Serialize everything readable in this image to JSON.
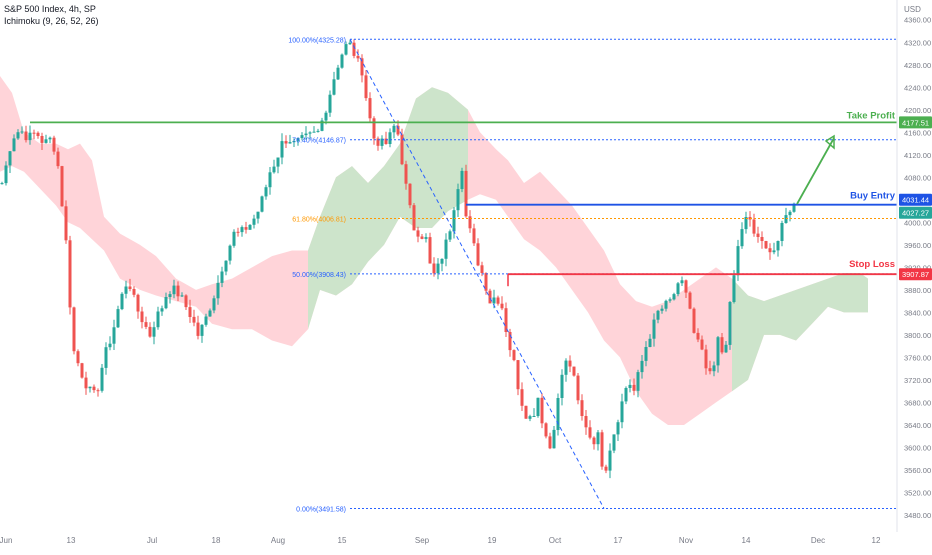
{
  "header": {
    "symbol_line": "S&P 500 Index, 4h, SP",
    "indicator_line": "Ichimoku (9, 26, 52, 26)"
  },
  "colors": {
    "bull": "#26a69a",
    "bear": "#ef5350",
    "cloud_bull": "#c8e6c9",
    "cloud_bear": "#ffcdd2",
    "take_profit": "#4caf50",
    "buy_entry": "#1e53e5",
    "stop_loss": "#f23645",
    "fib": "#2962ff",
    "fib_618": "#ff9800",
    "grid_text": "#787b86",
    "price_mark": "#26a69a"
  },
  "chart_data": {
    "type": "candlestick",
    "currency": "USD",
    "y_ticks": [
      4360.0,
      4320.0,
      4280.0,
      4240.0,
      4200.0,
      4160.0,
      4120.0,
      4080.0,
      4040.0,
      4000.0,
      3960.0,
      3920.0,
      3880.0,
      3840.0,
      3800.0,
      3760.0,
      3720.0,
      3680.0,
      3640.0,
      3600.0,
      3560.0,
      3520.0,
      3480.0
    ],
    "y_range": [
      3468,
      4378
    ],
    "x_ticks": [
      "Jun",
      "13",
      "Jul",
      "18",
      "Aug",
      "15",
      "Sep",
      "19",
      "Oct",
      "17",
      "Nov",
      "14",
      "Dec",
      "12"
    ],
    "levels": {
      "take_profit": {
        "label": "Take Profit",
        "price": 4177.51,
        "price_label": "4177.51"
      },
      "buy_entry": {
        "label": "Buy Entry",
        "price": 4031.44,
        "price_label": "4031.44"
      },
      "stop_loss": {
        "label": "Stop Loss",
        "price": 3907.87,
        "price_label": "3907.87"
      },
      "current": {
        "price": 4027.27,
        "price_label": "4027.27"
      }
    },
    "fibonacci": [
      {
        "label": "100.00%(4325.28)",
        "price": 4325.28
      },
      {
        "label": "76.40%(4146.87)",
        "price": 4146.87
      },
      {
        "label": "61.80%(4006.81)",
        "price": 4006.81
      },
      {
        "label": "50.00%(3908.43)",
        "price": 3908.43
      },
      {
        "label": "0.00%(3491.58)",
        "price": 3491.58
      }
    ],
    "candle_anchors": [
      [
        2,
        4070
      ],
      [
        6,
        4100
      ],
      [
        12,
        4150
      ],
      [
        20,
        4165
      ],
      [
        28,
        4150
      ],
      [
        36,
        4160
      ],
      [
        44,
        4140
      ],
      [
        52,
        4150
      ],
      [
        58,
        4100
      ],
      [
        64,
        4000
      ],
      [
        68,
        3930
      ],
      [
        72,
        3780
      ],
      [
        78,
        3750
      ],
      [
        84,
        3720
      ],
      [
        90,
        3700
      ],
      [
        96,
        3690
      ],
      [
        104,
        3760
      ],
      [
        112,
        3800
      ],
      [
        120,
        3860
      ],
      [
        128,
        3900
      ],
      [
        136,
        3850
      ],
      [
        144,
        3820
      ],
      [
        150,
        3800
      ],
      [
        156,
        3830
      ],
      [
        162,
        3850
      ],
      [
        168,
        3880
      ],
      [
        174,
        3880
      ],
      [
        180,
        3870
      ],
      [
        186,
        3850
      ],
      [
        192,
        3830
      ],
      [
        198,
        3800
      ],
      [
        204,
        3820
      ],
      [
        210,
        3850
      ],
      [
        216,
        3880
      ],
      [
        222,
        3920
      ],
      [
        228,
        3950
      ],
      [
        234,
        3980
      ],
      [
        240,
        3980
      ],
      [
        246,
        3990
      ],
      [
        252,
        4000
      ],
      [
        258,
        4020
      ],
      [
        264,
        4050
      ],
      [
        270,
        4090
      ],
      [
        276,
        4110
      ],
      [
        282,
        4140
      ],
      [
        288,
        4150
      ],
      [
        294,
        4140
      ],
      [
        300,
        4145
      ],
      [
        306,
        4150
      ],
      [
        312,
        4155
      ],
      [
        318,
        4160
      ],
      [
        324,
        4190
      ],
      [
        330,
        4230
      ],
      [
        336,
        4270
      ],
      [
        342,
        4300
      ],
      [
        348,
        4320
      ],
      [
        352,
        4310
      ],
      [
        356,
        4290
      ],
      [
        362,
        4270
      ],
      [
        368,
        4200
      ],
      [
        374,
        4150
      ],
      [
        380,
        4140
      ],
      [
        386,
        4140
      ],
      [
        392,
        4160
      ],
      [
        396,
        4180
      ],
      [
        402,
        4110
      ],
      [
        408,
        4040
      ],
      [
        414,
        3990
      ],
      [
        420,
        3980
      ],
      [
        426,
        3970
      ],
      [
        432,
        3900
      ],
      [
        438,
        3920
      ],
      [
        444,
        3950
      ],
      [
        450,
        3990
      ],
      [
        456,
        4050
      ],
      [
        462,
        4100
      ],
      [
        466,
        4010
      ],
      [
        472,
        3970
      ],
      [
        478,
        3930
      ],
      [
        484,
        3900
      ],
      [
        490,
        3860
      ],
      [
        496,
        3870
      ],
      [
        502,
        3850
      ],
      [
        508,
        3790
      ],
      [
        514,
        3750
      ],
      [
        520,
        3690
      ],
      [
        526,
        3660
      ],
      [
        532,
        3650
      ],
      [
        538,
        3690
      ],
      [
        544,
        3630
      ],
      [
        550,
        3600
      ],
      [
        556,
        3660
      ],
      [
        562,
        3730
      ],
      [
        568,
        3760
      ],
      [
        574,
        3720
      ],
      [
        580,
        3660
      ],
      [
        586,
        3640
      ],
      [
        592,
        3610
      ],
      [
        598,
        3620
      ],
      [
        604,
        3550
      ],
      [
        610,
        3600
      ],
      [
        616,
        3640
      ],
      [
        622,
        3680
      ],
      [
        628,
        3720
      ],
      [
        634,
        3700
      ],
      [
        640,
        3740
      ],
      [
        646,
        3780
      ],
      [
        652,
        3810
      ],
      [
        658,
        3840
      ],
      [
        664,
        3850
      ],
      [
        670,
        3860
      ],
      [
        676,
        3880
      ],
      [
        682,
        3890
      ],
      [
        688,
        3870
      ],
      [
        694,
        3800
      ],
      [
        700,
        3780
      ],
      [
        706,
        3740
      ],
      [
        712,
        3720
      ],
      [
        718,
        3790
      ],
      [
        724,
        3760
      ],
      [
        728,
        3820
      ],
      [
        732,
        3880
      ],
      [
        736,
        3930
      ],
      [
        740,
        3980
      ],
      [
        744,
        4000
      ],
      [
        748,
        4010
      ],
      [
        752,
        3990
      ],
      [
        756,
        3970
      ],
      [
        760,
        3980
      ],
      [
        764,
        3940
      ],
      [
        768,
        3960
      ],
      [
        772,
        3950
      ],
      [
        776,
        3955
      ],
      [
        780,
        3980
      ],
      [
        784,
        4000
      ],
      [
        788,
        4020
      ],
      [
        792,
        4030
      ]
    ],
    "cloud": {
      "upper": [
        [
          0,
          4260
        ],
        [
          12,
          4230
        ],
        [
          24,
          4160
        ],
        [
          40,
          4140
        ],
        [
          56,
          4140
        ],
        [
          68,
          4130
        ],
        [
          80,
          4140
        ],
        [
          92,
          4110
        ],
        [
          104,
          4010
        ],
        [
          120,
          3980
        ],
        [
          140,
          3960
        ],
        [
          156,
          3940
        ],
        [
          176,
          3900
        ],
        [
          196,
          3880
        ],
        [
          212,
          3890
        ],
        [
          232,
          3900
        ],
        [
          252,
          3920
        ],
        [
          272,
          3940
        ],
        [
          292,
          3950
        ],
        [
          308,
          3950
        ],
        [
          320,
          4010
        ],
        [
          336,
          4080
        ],
        [
          352,
          4100
        ],
        [
          368,
          4070
        ],
        [
          384,
          4100
        ],
        [
          400,
          4140
        ],
        [
          416,
          4220
        ],
        [
          432,
          4240
        ],
        [
          448,
          4230
        ],
        [
          468,
          4200
        ],
        [
          480,
          4160
        ],
        [
          496,
          4130
        ],
        [
          508,
          4110
        ],
        [
          524,
          4070
        ],
        [
          540,
          4090
        ],
        [
          556,
          4060
        ],
        [
          572,
          4030
        ],
        [
          588,
          3990
        ],
        [
          604,
          3950
        ],
        [
          620,
          3890
        ],
        [
          636,
          3860
        ],
        [
          652,
          3850
        ],
        [
          668,
          3860
        ],
        [
          684,
          3880
        ],
        [
          700,
          3900
        ],
        [
          716,
          3920
        ],
        [
          732,
          3900
        ],
        [
          748,
          3870
        ],
        [
          764,
          3860
        ],
        [
          780,
          3870
        ],
        [
          796,
          3880
        ],
        [
          812,
          3890
        ],
        [
          828,
          3900
        ],
        [
          844,
          3910
        ],
        [
          860,
          3910
        ],
        [
          868,
          3900
        ]
      ],
      "lower": [
        [
          0,
          4090
        ],
        [
          12,
          4100
        ],
        [
          24,
          4090
        ],
        [
          40,
          4060
        ],
        [
          56,
          4030
        ],
        [
          68,
          4000
        ],
        [
          80,
          3990
        ],
        [
          92,
          3970
        ],
        [
          104,
          3950
        ],
        [
          120,
          3900
        ],
        [
          140,
          3880
        ],
        [
          156,
          3870
        ],
        [
          176,
          3860
        ],
        [
          196,
          3850
        ],
        [
          212,
          3820
        ],
        [
          232,
          3810
        ],
        [
          252,
          3810
        ],
        [
          272,
          3790
        ],
        [
          292,
          3780
        ],
        [
          308,
          3810
        ],
        [
          320,
          3880
        ],
        [
          336,
          3870
        ],
        [
          352,
          3890
        ],
        [
          368,
          3930
        ],
        [
          384,
          3960
        ],
        [
          400,
          4010
        ],
        [
          416,
          3990
        ],
        [
          432,
          3990
        ],
        [
          448,
          4020
        ],
        [
          468,
          4040
        ],
        [
          480,
          4050
        ],
        [
          496,
          4040
        ],
        [
          508,
          4010
        ],
        [
          524,
          3970
        ],
        [
          540,
          3950
        ],
        [
          556,
          3920
        ],
        [
          572,
          3880
        ],
        [
          588,
          3840
        ],
        [
          604,
          3790
        ],
        [
          620,
          3760
        ],
        [
          636,
          3700
        ],
        [
          652,
          3660
        ],
        [
          668,
          3640
        ],
        [
          684,
          3640
        ],
        [
          700,
          3660
        ],
        [
          716,
          3680
        ],
        [
          732,
          3700
        ],
        [
          748,
          3720
        ],
        [
          764,
          3800
        ],
        [
          780,
          3800
        ],
        [
          796,
          3790
        ],
        [
          812,
          3820
        ],
        [
          828,
          3850
        ],
        [
          844,
          3840
        ],
        [
          860,
          3840
        ],
        [
          868,
          3840
        ]
      ],
      "bull_ranges": [
        [
          300,
          472
        ],
        [
          728,
          868
        ]
      ]
    }
  }
}
